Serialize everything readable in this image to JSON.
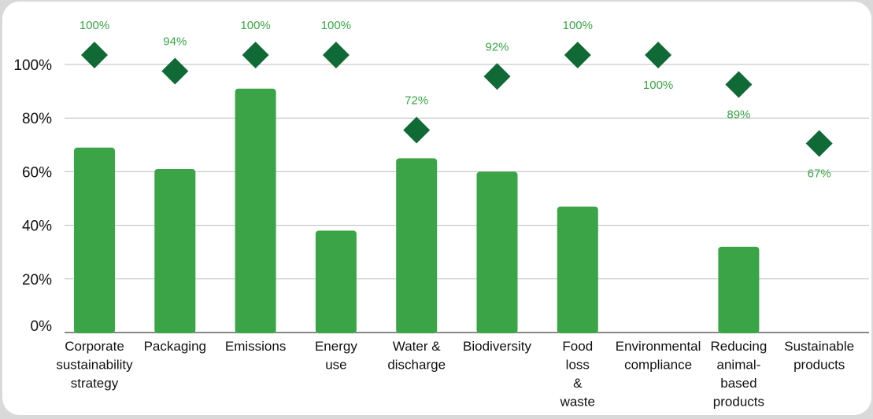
{
  "chart_data": {
    "type": "bar",
    "ylim": [
      0,
      100
    ],
    "yticks": [
      0,
      20,
      40,
      60,
      80,
      100
    ],
    "ytick_labels": [
      "0%",
      "20%",
      "40%",
      "60%",
      "80%",
      "100%"
    ],
    "grid": true,
    "categories": [
      [
        "Corporate",
        "sustainability",
        "strategy"
      ],
      [
        "Packaging"
      ],
      [
        "Emissions"
      ],
      [
        "Energy",
        "use"
      ],
      [
        "Water &",
        "discharge"
      ],
      [
        "Biodiversity"
      ],
      [
        "Food",
        "loss",
        "&",
        "waste"
      ],
      [
        "Environmental",
        "compliance"
      ],
      [
        "Reducing",
        "animal-",
        "based",
        "products"
      ],
      [
        "Sustainable",
        "products"
      ]
    ],
    "series": [
      {
        "type": "bar",
        "values": [
          69,
          61,
          91,
          38,
          65,
          60,
          47,
          0,
          32,
          0
        ]
      },
      {
        "type": "scatter",
        "marker": "diamond",
        "values": [
          100,
          94,
          100,
          100,
          72,
          92,
          100,
          100,
          89,
          67
        ],
        "labels": [
          "100%",
          "94%",
          "100%",
          "100%",
          "72%",
          "92%",
          "100%",
          "100%",
          "89%",
          "67%"
        ],
        "label_positions": [
          "above",
          "above",
          "above",
          "above",
          "above",
          "above",
          "above",
          "below",
          "below",
          "below"
        ]
      }
    ],
    "colors": {
      "bar": "#3aa447",
      "marker": "#0f6a36",
      "label": "#3aa447",
      "grid": "#bdbdbd",
      "axis": "#111111"
    }
  }
}
